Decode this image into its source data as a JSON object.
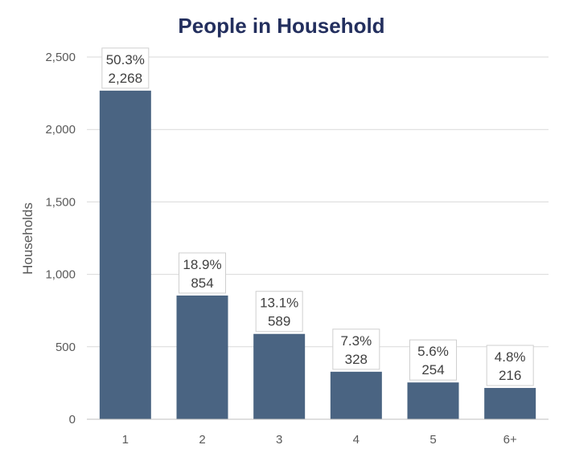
{
  "chart_data": {
    "type": "bar",
    "title": "People in Household",
    "xlabel": "",
    "ylabel": "Households",
    "categories": [
      "1",
      "2",
      "3",
      "4",
      "5",
      "6+"
    ],
    "values": [
      2268,
      854,
      589,
      328,
      254,
      216
    ],
    "value_labels": [
      "2,268",
      "854",
      "589",
      "328",
      "254",
      "216"
    ],
    "percent_labels": [
      "50.3%",
      "18.9%",
      "13.1%",
      "7.3%",
      "5.6%",
      "4.8%"
    ],
    "ylim": [
      0,
      2500
    ],
    "yticks": [
      0,
      500,
      1000,
      1500,
      2000,
      2500
    ],
    "ytick_labels": [
      "0",
      "500",
      "1,000",
      "1,500",
      "2,000",
      "2,500"
    ],
    "grid": true,
    "bar_color": "#4a6482",
    "title_color": "#232f5e"
  }
}
